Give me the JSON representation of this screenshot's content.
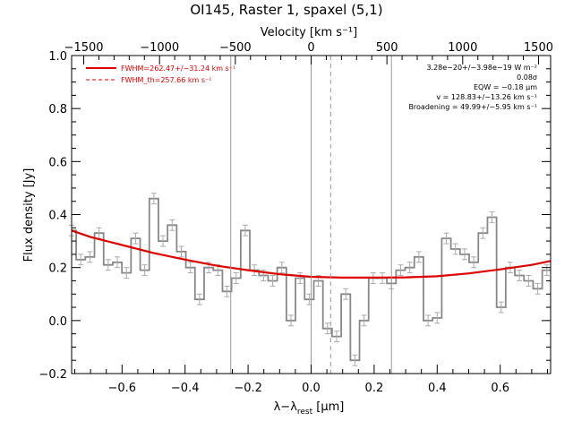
{
  "chart_data": {
    "type": "line",
    "title": "OI145, Raster 1, spaxel (5,1)",
    "xlabel": "λ−λ",
    "xlabel_sub": "rest",
    "xlabel_unit": " [μm]",
    "ylabel": "Flux density [Jy]",
    "top_axis_label": "Velocity [km s⁻¹]",
    "xlim": [
      -0.76,
      0.76
    ],
    "ylim": [
      -0.2,
      1.0
    ],
    "top_xlim": [
      -1580,
      1580
    ],
    "xticks": [
      -0.6,
      -0.4,
      -0.2,
      0.0,
      0.2,
      0.4,
      0.6
    ],
    "xtick_labels": [
      "−0.6",
      "−0.4",
      "−0.2",
      "0.0",
      "0.2",
      "0.4",
      "0.6"
    ],
    "yticks": [
      -0.2,
      0.0,
      0.2,
      0.4,
      0.6,
      0.8,
      1.0
    ],
    "ytick_labels": [
      "−0.2",
      "0.0",
      "0.2",
      "0.4",
      "0.6",
      "0.8",
      "1.0"
    ],
    "top_ticks": [
      -1500,
      -1000,
      -500,
      0,
      500,
      1000,
      1500
    ],
    "top_tick_labels": [
      "−1500",
      "−1000",
      "−500",
      "0",
      "500",
      "1000",
      "1500"
    ],
    "vertical_lines": [
      {
        "x": -0.255,
        "style": "solid"
      },
      {
        "x": 0.0,
        "style": "solid"
      },
      {
        "x": 0.062,
        "style": "dashed"
      },
      {
        "x": 0.255,
        "style": "solid"
      }
    ],
    "legend_position": "top-left",
    "legend": [
      {
        "label": "FWHM=262.47+/−31.24 km s⁻¹",
        "style": "solid",
        "color": "#dd0000"
      },
      {
        "label": "FWHM_th=257.66 km s⁻¹",
        "style": "dashed",
        "color": "#dd0000"
      }
    ],
    "annotations": [
      "3.28e−20+/−3.98e−19 W m⁻²",
      "0.08σ",
      "EQW = −0.18 μm",
      "v = 128.83+/−13.26 km s⁻¹",
      "Broadening = 49.99+/−5.95 km s⁻¹"
    ],
    "series": [
      {
        "kind": "histogram",
        "color": "#888888",
        "bin_width": 0.0288,
        "error": 0.02,
        "x": [
          -0.76,
          -0.731,
          -0.702,
          -0.673,
          -0.644,
          -0.615,
          -0.586,
          -0.557,
          -0.528,
          -0.499,
          -0.47,
          -0.441,
          -0.412,
          -0.383,
          -0.354,
          -0.325,
          -0.296,
          -0.267,
          -0.238,
          -0.209,
          -0.18,
          -0.151,
          -0.122,
          -0.093,
          -0.064,
          -0.035,
          -0.006,
          0.023,
          0.052,
          0.081,
          0.11,
          0.139,
          0.168,
          0.197,
          0.226,
          0.255,
          0.284,
          0.313,
          0.342,
          0.371,
          0.4,
          0.429,
          0.458,
          0.487,
          0.516,
          0.545,
          0.574,
          0.603,
          0.632,
          0.661,
          0.69,
          0.719,
          0.748
        ],
        "y": [
          0.34,
          0.23,
          0.24,
          0.33,
          0.21,
          0.22,
          0.18,
          0.31,
          0.19,
          0.46,
          0.3,
          0.36,
          0.26,
          0.2,
          0.08,
          0.2,
          0.19,
          0.11,
          0.16,
          0.34,
          0.19,
          0.17,
          0.15,
          0.2,
          0.0,
          0.16,
          0.08,
          0.15,
          -0.03,
          -0.06,
          0.1,
          -0.15,
          0.0,
          0.16,
          0.16,
          0.14,
          0.19,
          0.2,
          0.24,
          0.0,
          0.01,
          0.31,
          0.27,
          0.25,
          0.22,
          0.33,
          0.39,
          0.05,
          0.2,
          0.17,
          0.15,
          0.12,
          0.19
        ]
      },
      {
        "kind": "fit",
        "color": "#dd0000",
        "x": [
          -0.76,
          -0.7,
          -0.6,
          -0.5,
          -0.4,
          -0.3,
          -0.2,
          -0.1,
          0.0,
          0.1,
          0.2,
          0.3,
          0.4,
          0.5,
          0.6,
          0.7,
          0.76
        ],
        "y": [
          0.34,
          0.315,
          0.285,
          0.255,
          0.23,
          0.207,
          0.19,
          0.175,
          0.165,
          0.162,
          0.162,
          0.163,
          0.167,
          0.178,
          0.193,
          0.21,
          0.225
        ]
      }
    ]
  }
}
